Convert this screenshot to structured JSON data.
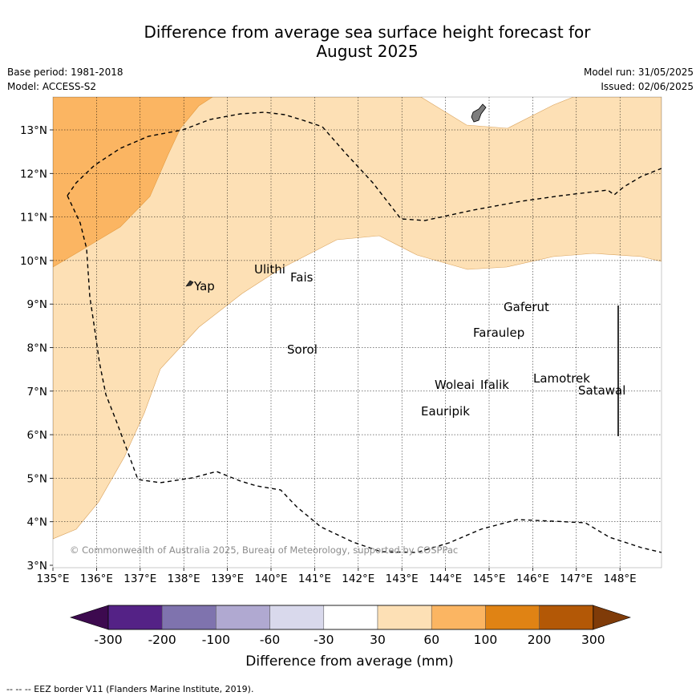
{
  "title_line1": "Difference from average sea surface height forecast for",
  "title_line2": "August 2025",
  "meta": {
    "base_period": "Base period: 1981-2018",
    "model": "Model: ACCESS-S2",
    "model_run": "Model run: 31/05/2025",
    "issued": "Issued: 02/06/2025"
  },
  "lon_labels": [
    "135°E",
    "136°E",
    "137°E",
    "138°E",
    "139°E",
    "140°E",
    "141°E",
    "142°E",
    "143°E",
    "144°E",
    "145°E",
    "146°E",
    "147°E",
    "148°E"
  ],
  "lat_labels": [
    "3°N",
    "4°N",
    "5°N",
    "6°N",
    "7°N",
    "8°N",
    "9°N",
    "10°N",
    "11°N",
    "12°N",
    "13°N"
  ],
  "places": [
    {
      "name": "Yap"
    },
    {
      "name": "Ulithi"
    },
    {
      "name": "Fais"
    },
    {
      "name": "Gaferut"
    },
    {
      "name": "Faraulep"
    },
    {
      "name": "Sorol"
    },
    {
      "name": "Lamotrek"
    },
    {
      "name": "Woleai"
    },
    {
      "name": "Ifalik"
    },
    {
      "name": "Satawal"
    },
    {
      "name": "Eauripik"
    }
  ],
  "copyright": "© Commonwealth of Australia 2025, Bureau of Meteorology, supported by COSPPac",
  "legend": {
    "title": "Difference from average (mm)",
    "ticks": [
      "-300",
      "-200",
      "-100",
      "-60",
      "-30",
      "30",
      "60",
      "100",
      "200",
      "300"
    ],
    "colors": [
      "#3d0a4f",
      "#542286",
      "#7f73ae",
      "#b0a9d1",
      "#d9d9ec",
      "#ffffff",
      "#fde0b5",
      "#fbb562",
      "#e08314",
      "#b35806",
      "#7f3b08"
    ]
  },
  "footer": "--  --  -- EEZ border V11 (Flanders Marine Institute, 2019)."
}
